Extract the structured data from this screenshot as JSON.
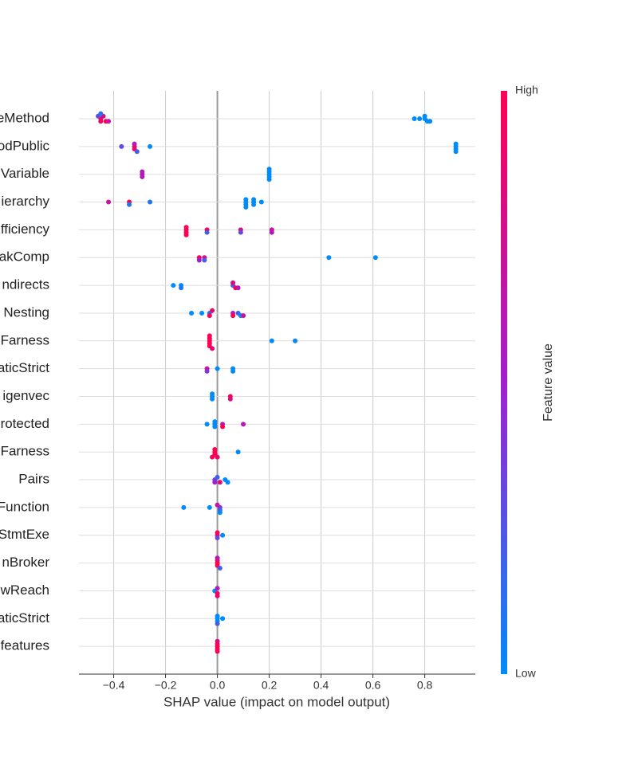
{
  "chart_data": {
    "type": "beeswarm",
    "x_label": "SHAP value (impact on model output)",
    "colorbar_label": "Feature value",
    "colorbar_high": "High",
    "colorbar_low": "Low",
    "colormap": [
      "#008bfb",
      "#a21fd0",
      "#ff0052"
    ],
    "xlim": [
      -0.534,
      0.995
    ],
    "xticks": [
      {
        "value": -0.4,
        "label": "−0.4"
      },
      {
        "value": -0.2,
        "label": "−0.2"
      },
      {
        "value": 0.0,
        "label": "0.0"
      },
      0.2,
      0.4,
      0.6,
      0.8
    ],
    "grid": true,
    "series": [
      {
        "name": "eMethod",
        "values": [
          -0.45,
          -0.45,
          -0.44,
          -0.43,
          -0.46,
          -0.42,
          -0.45,
          0.76,
          0.78,
          0.8,
          0.81,
          0.82,
          0.8
        ],
        "feature_values": [
          1,
          0.9,
          0.8,
          1,
          0.3,
          0.7,
          0.1,
          0,
          0,
          0,
          0,
          0,
          0
        ]
      },
      {
        "name": "odPublic",
        "values": [
          -0.37,
          -0.32,
          -0.32,
          -0.32,
          -0.31,
          -0.26,
          0.92,
          0.92,
          0.92,
          0.92
        ],
        "feature_values": [
          0.3,
          1,
          0.9,
          0.6,
          0.2,
          0,
          0,
          0,
          0,
          0
        ]
      },
      {
        "name": "Variable",
        "values": [
          -0.29,
          -0.29,
          -0.29,
          0.2,
          0.2,
          0.2,
          0.2,
          0.2
        ],
        "feature_values": [
          0.6,
          0.6,
          0.6,
          0,
          0,
          0,
          0,
          0
        ]
      },
      {
        "name": "ierarchy",
        "values": [
          -0.42,
          -0.34,
          -0.34,
          -0.26,
          0.11,
          0.11,
          0.11,
          0.11,
          0.14,
          0.14,
          0.14,
          0.17
        ],
        "feature_values": [
          0.7,
          1,
          0.1,
          0.1,
          0,
          0,
          0,
          0,
          0,
          0,
          0,
          0
        ]
      },
      {
        "name": "fficiency",
        "values": [
          -0.12,
          -0.12,
          -0.12,
          -0.12,
          -0.04,
          -0.04,
          0.09,
          0.09,
          0.21,
          0.21
        ],
        "feature_values": [
          1,
          1,
          1,
          1,
          1,
          0.2,
          0.8,
          0.3,
          0.7,
          0.6
        ]
      },
      {
        "name": "akComp",
        "values": [
          -0.07,
          -0.07,
          -0.05,
          -0.05,
          0.43,
          0.61
        ],
        "feature_values": [
          1,
          0.5,
          0.8,
          0.2,
          0,
          0
        ]
      },
      {
        "name": "ndirects",
        "values": [
          -0.17,
          -0.14,
          -0.14,
          0.06,
          0.07,
          0.08,
          0.06
        ],
        "feature_values": [
          0,
          0,
          0.1,
          0.2,
          1,
          0.6,
          0.8
        ]
      },
      {
        "name": "Nesting",
        "values": [
          -0.1,
          -0.06,
          -0.03,
          -0.03,
          -0.02,
          0.06,
          0.06,
          0.08,
          0.09,
          0.1
        ],
        "feature_values": [
          0,
          0,
          0.1,
          1,
          0.9,
          0.6,
          1,
          0.2,
          0,
          0.7
        ]
      },
      {
        "name": "Farness",
        "values": [
          -0.03,
          -0.03,
          -0.03,
          -0.03,
          -0.03,
          -0.02,
          0.21,
          0.3
        ],
        "feature_values": [
          1,
          1,
          1,
          1,
          1,
          0.9,
          0,
          0
        ]
      },
      {
        "name": "aticStrict",
        "values": [
          -0.04,
          -0.04,
          0.0,
          0.06,
          0.06
        ],
        "feature_values": [
          0.7,
          0.4,
          0,
          0,
          0
        ]
      },
      {
        "name": "igenvec",
        "values": [
          -0.02,
          -0.02,
          -0.02,
          0.05,
          0.05
        ],
        "feature_values": [
          0,
          0,
          0,
          1,
          0.8
        ]
      },
      {
        "name": "rotected",
        "values": [
          -0.04,
          -0.01,
          -0.01,
          -0.01,
          0.02,
          0.02,
          0.1
        ],
        "feature_values": [
          0,
          0,
          0,
          0,
          0.6,
          1,
          0.6
        ]
      },
      {
        "name": "Farness",
        "values": [
          -0.01,
          -0.01,
          -0.01,
          -0.02,
          0.0,
          0.08
        ],
        "feature_values": [
          1,
          1,
          1,
          1,
          0.9,
          0
        ]
      },
      {
        "name": "Pairs",
        "values": [
          -0.01,
          -0.01,
          0.0,
          0.01,
          0.03,
          0.04
        ],
        "feature_values": [
          0.3,
          0.5,
          0.2,
          0.8,
          0,
          0
        ]
      },
      {
        "name": "Function",
        "values": [
          -0.13,
          -0.03,
          0.01,
          0.01,
          0.0,
          0.01
        ],
        "feature_values": [
          0,
          0,
          0.4,
          0.2,
          0.7,
          0
        ]
      },
      {
        "name": "StmtExe",
        "values": [
          0.0,
          0.0,
          0.0,
          0.02
        ],
        "feature_values": [
          0.8,
          0.3,
          1,
          0
        ]
      },
      {
        "name": "nBroker",
        "values": [
          0.0,
          0.0,
          0.0,
          0.01,
          0.0
        ],
        "feature_values": [
          1,
          1,
          1,
          0.2,
          0.6
        ]
      },
      {
        "name": "wReach",
        "values": [
          -0.01,
          0.0,
          0.0,
          0.0
        ],
        "feature_values": [
          0,
          1,
          0.6,
          0.9
        ]
      },
      {
        "name": "aticStrict",
        "values": [
          0.0,
          0.0,
          0.0,
          0.02,
          0.0
        ],
        "feature_values": [
          0,
          0,
          0,
          0,
          0.2
        ]
      },
      {
        "name": "features",
        "values": [
          0.0,
          0.0,
          0.0,
          0.0,
          0.0
        ],
        "feature_values": [
          1,
          1,
          1,
          1,
          0.8
        ]
      }
    ]
  }
}
